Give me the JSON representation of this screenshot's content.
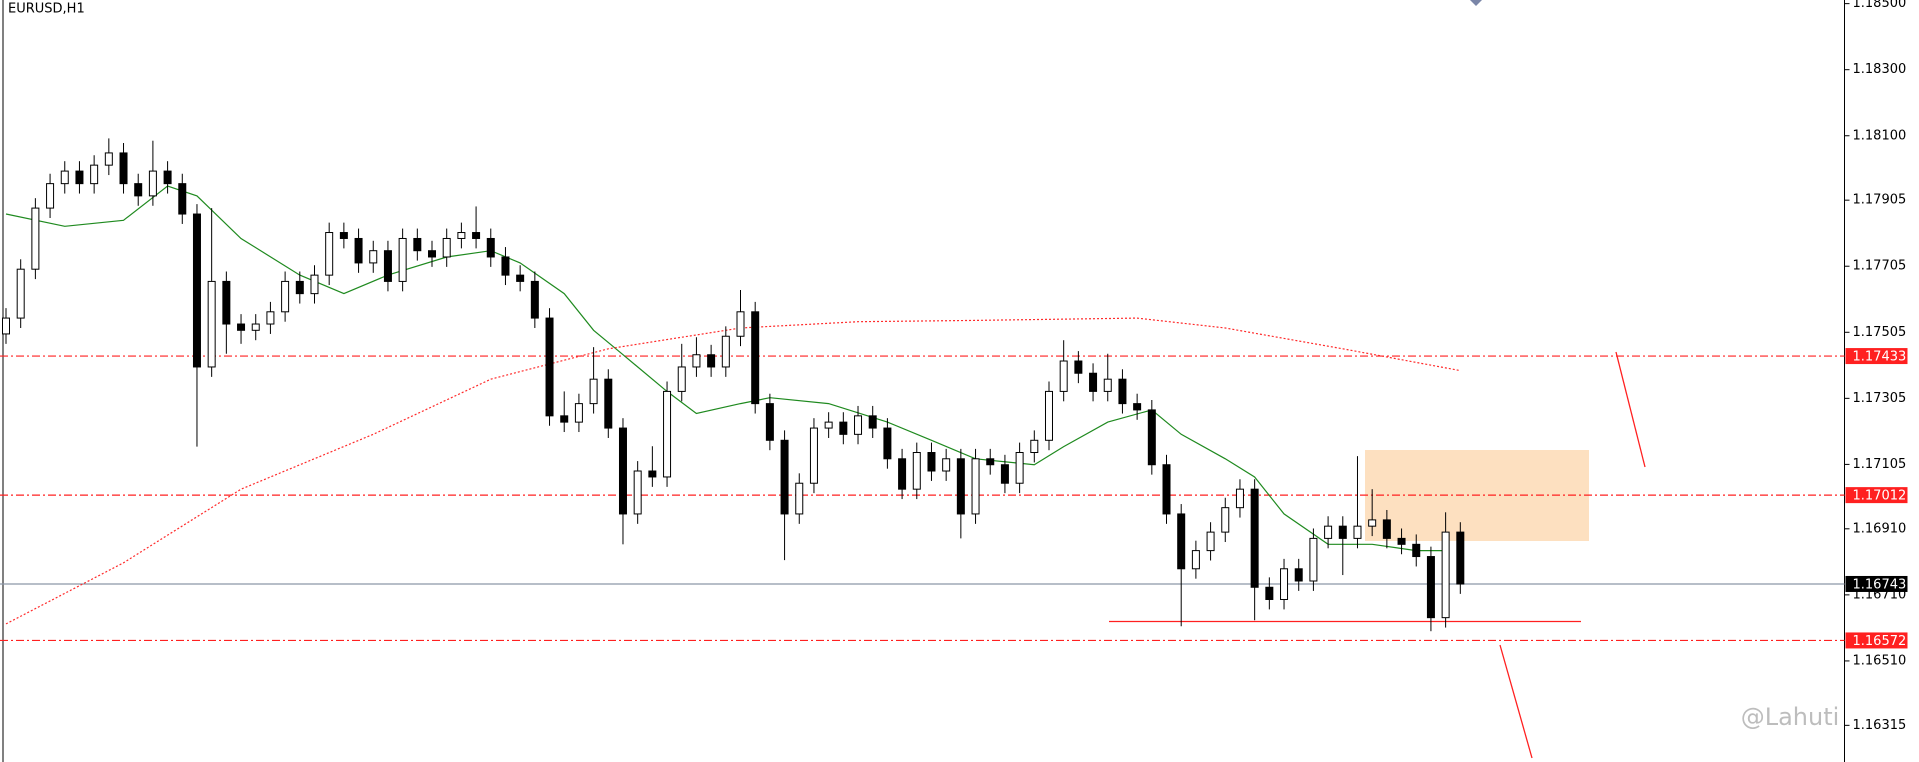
{
  "chart_data": {
    "type": "candlestick",
    "title": "EURUSD,H1",
    "watermark": "@Lahuti",
    "open": [
      1.175,
      1.17548,
      1.17696,
      1.17881,
      1.17955,
      1.17993,
      1.17955,
      1.18011,
      1.18048,
      1.17955,
      1.17918,
      1.17993,
      1.17955,
      1.17863,
      1.174,
      1.17659,
      1.1753,
      1.17511,
      1.1753,
      1.17567,
      1.17659,
      1.17622,
      1.17678,
      1.17807,
      1.17789,
      1.17715,
      1.17752,
      1.17659,
      1.17789,
      1.17752,
      1.17733,
      1.17789,
      1.17807,
      1.17789,
      1.17733,
      1.17678,
      1.17659,
      1.17548,
      1.17252,
      1.17233,
      1.17289,
      1.17363,
      1.17215,
      1.16955,
      1.17085,
      1.17067,
      1.17326,
      1.174,
      1.17437,
      1.174,
      1.17493,
      1.17567,
      1.17289,
      1.17178,
      1.16955,
      1.17048,
      1.17215,
      1.17233,
      1.17196,
      1.17252,
      1.17215,
      1.17122,
      1.1703,
      1.17141,
      1.17085,
      1.17122,
      1.16955,
      1.17122,
      1.17104,
      1.17048,
      1.17141,
      1.17178,
      1.17326,
      1.17418,
      1.17381,
      1.17326,
      1.17363,
      1.17289,
      1.1727,
      1.17104,
      1.16955,
      1.16789,
      1.16844,
      1.169,
      1.16974,
      1.1703,
      1.16733,
      1.16696,
      1.16789,
      1.16752,
      1.16881,
      1.16918,
      1.16881,
      1.16918,
      1.16937,
      1.16881,
      1.16863,
      1.16826,
      1.16641,
      1.169
    ],
    "high": [
      1.17578,
      1.17726,
      1.17911,
      1.17985,
      1.18023,
      1.18023,
      1.18041,
      1.18092,
      1.18078,
      1.17985,
      1.18085,
      1.18023,
      1.17985,
      1.17893,
      1.17881,
      1.17689,
      1.1756,
      1.1756,
      1.17597,
      1.17689,
      1.17689,
      1.17708,
      1.17837,
      1.17837,
      1.17819,
      1.17782,
      1.17782,
      1.17819,
      1.17819,
      1.17782,
      1.17819,
      1.17837,
      1.17886,
      1.17819,
      1.17763,
      1.17708,
      1.17689,
      1.17578,
      1.17326,
      1.17319,
      1.1746,
      1.17393,
      1.17245,
      1.17115,
      1.1716,
      1.17356,
      1.1747,
      1.1749,
      1.17467,
      1.17523,
      1.17633,
      1.17597,
      1.17319,
      1.17208,
      1.17078,
      1.17245,
      1.17263,
      1.17263,
      1.17282,
      1.17282,
      1.17245,
      1.17152,
      1.17171,
      1.17171,
      1.17152,
      1.17152,
      1.17152,
      1.17152,
      1.17134,
      1.17171,
      1.17208,
      1.17356,
      1.17481,
      1.17448,
      1.17411,
      1.1744,
      1.17393,
      1.17319,
      1.173,
      1.17134,
      1.16985,
      1.16874,
      1.1693,
      1.17004,
      1.1706,
      1.1706,
      1.16763,
      1.16819,
      1.16819,
      1.16911,
      1.16948,
      1.16948,
      1.1713,
      1.1703,
      1.16967,
      1.16911,
      1.16893,
      1.16856,
      1.1696,
      1.1693
    ],
    "low": [
      1.1747,
      1.17518,
      1.17666,
      1.17851,
      1.17925,
      1.17925,
      1.17925,
      1.17981,
      1.17925,
      1.17888,
      1.17888,
      1.17925,
      1.17833,
      1.17159,
      1.1737,
      1.1744,
      1.1747,
      1.17481,
      1.175,
      1.17537,
      1.17592,
      1.17592,
      1.17648,
      1.17759,
      1.17685,
      1.17685,
      1.17629,
      1.17629,
      1.17722,
      1.17703,
      1.17703,
      1.17759,
      1.17759,
      1.17703,
      1.17648,
      1.17629,
      1.17518,
      1.17222,
      1.17203,
      1.17203,
      1.17259,
      1.17185,
      1.16863,
      1.16925,
      1.17037,
      1.17037,
      1.17296,
      1.1737,
      1.1737,
      1.1737,
      1.17463,
      1.17259,
      1.17148,
      1.16815,
      1.16925,
      1.17018,
      1.17185,
      1.17166,
      1.17166,
      1.17185,
      1.17092,
      1.17,
      1.17,
      1.17055,
      1.17055,
      1.16881,
      1.16925,
      1.17074,
      1.17018,
      1.17018,
      1.17111,
      1.17148,
      1.17296,
      1.17351,
      1.17296,
      1.17296,
      1.17259,
      1.1724,
      1.17074,
      1.16925,
      1.16615,
      1.16759,
      1.16814,
      1.1687,
      1.16944,
      1.16633,
      1.16666,
      1.16666,
      1.16722,
      1.16722,
      1.16851,
      1.1677,
      1.16851,
      1.16888,
      1.16851,
      1.16833,
      1.16796,
      1.166,
      1.16611,
      1.16713
    ],
    "close": [
      1.17548,
      1.17696,
      1.17881,
      1.17955,
      1.17993,
      1.17955,
      1.18011,
      1.18048,
      1.17955,
      1.17918,
      1.17993,
      1.17955,
      1.17863,
      1.174,
      1.17659,
      1.1753,
      1.17511,
      1.1753,
      1.17567,
      1.17659,
      1.17622,
      1.17678,
      1.17807,
      1.17789,
      1.17715,
      1.17752,
      1.17659,
      1.17789,
      1.17752,
      1.17733,
      1.17789,
      1.17807,
      1.17789,
      1.17733,
      1.17678,
      1.17659,
      1.17548,
      1.17252,
      1.17233,
      1.17289,
      1.17363,
      1.17215,
      1.16955,
      1.17085,
      1.17067,
      1.17326,
      1.174,
      1.17437,
      1.174,
      1.17493,
      1.17567,
      1.17289,
      1.17178,
      1.16955,
      1.17048,
      1.17215,
      1.17233,
      1.17196,
      1.17252,
      1.17215,
      1.17122,
      1.1703,
      1.17141,
      1.17085,
      1.17122,
      1.16955,
      1.17122,
      1.17104,
      1.17048,
      1.17141,
      1.17178,
      1.17326,
      1.17418,
      1.17381,
      1.17326,
      1.17363,
      1.17289,
      1.1727,
      1.17104,
      1.16955,
      1.16789,
      1.16844,
      1.169,
      1.16974,
      1.1703,
      1.16733,
      1.16696,
      1.16789,
      1.16752,
      1.16881,
      1.16918,
      1.16881,
      1.16918,
      1.16937,
      1.16881,
      1.16863,
      1.16826,
      1.16641,
      1.169,
      1.16743
    ],
    "up_color": "#ffffff",
    "down_color": "#000000",
    "lines": [
      {
        "color": "#1f8a1f",
        "style": "solid",
        "x": [
          0,
          4,
          8,
          11,
          13,
          16,
          20,
          23,
          26,
          30,
          33,
          35,
          38,
          40,
          42,
          45,
          47,
          50,
          52,
          56,
          60,
          63,
          66,
          70,
          72,
          75,
          78,
          80,
          83,
          85,
          87,
          90,
          93,
          96,
          98
        ],
        "values": [
          1.17863,
          1.17826,
          1.17844,
          1.17948,
          1.17918,
          1.17789,
          1.17678,
          1.17622,
          1.17678,
          1.17733,
          1.17752,
          1.17715,
          1.17622,
          1.17511,
          1.17437,
          1.17326,
          1.17259,
          1.17289,
          1.17307,
          1.17289,
          1.17233,
          1.17178,
          1.17122,
          1.17104,
          1.17159,
          1.17233,
          1.1727,
          1.17196,
          1.17122,
          1.17067,
          1.16955,
          1.16863,
          1.16863,
          1.16844,
          1.16844
        ]
      },
      {
        "color": "#ff2a2a",
        "style": "dotted",
        "x": [
          0,
          8,
          16,
          25,
          33,
          41,
          50,
          58,
          66,
          77,
          83,
          91,
          99
        ],
        "values": [
          1.16622,
          1.16807,
          1.1703,
          1.17196,
          1.17363,
          1.17455,
          1.17518,
          1.17537,
          1.17541,
          1.17548,
          1.17518,
          1.17455,
          1.17389
        ]
      }
    ],
    "levels": [
      {
        "value": 1.17433,
        "color": "#ff2020",
        "style": "dash-dot"
      },
      {
        "value": 1.17012,
        "color": "#ff2020",
        "style": "dash-dot"
      },
      {
        "value": 1.16743,
        "color": "#000000",
        "style": "solid"
      },
      {
        "value": 1.16572,
        "color": "#ff2020",
        "style": "dash-dot"
      }
    ],
    "ylim": [
      1.16204,
      1.18511
    ],
    "yticks": [
      {
        "value": 1.185,
        "label": "1.18500"
      },
      {
        "value": 1.183,
        "label": "1.18300"
      },
      {
        "value": 1.181,
        "label": "1.18100"
      },
      1.17905,
      1.17705,
      1.17505,
      1.17305,
      1.17105,
      {
        "value": 1.1691,
        "label": "1.16910"
      },
      {
        "value": 1.1671,
        "label": "1.16710"
      },
      {
        "value": 1.1651,
        "label": "1.16510"
      },
      1.16315
    ]
  }
}
